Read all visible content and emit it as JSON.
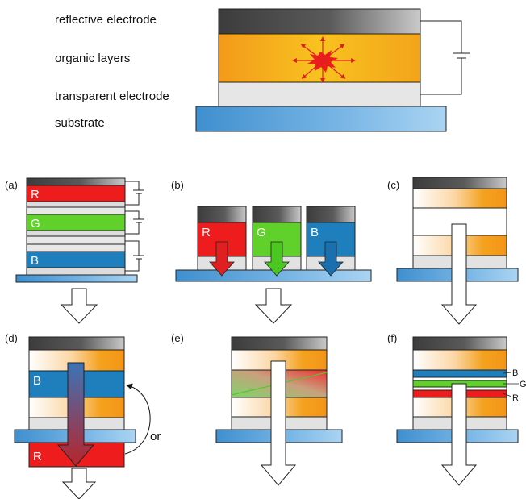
{
  "top_labels": {
    "reflective": "reflective electrode",
    "organic": "organic layers",
    "transparent": "transparent electrode",
    "substrate": "substrate"
  },
  "panels": {
    "a": "(a)",
    "b": "(b)",
    "c": "(c)",
    "d": "(d)",
    "e": "(e)",
    "f": "(f)"
  },
  "letters": {
    "r": "R",
    "g": "G",
    "b": "B"
  },
  "or_label": "or",
  "colors": {
    "red": "#ee1c1c",
    "green": "#5fd12a",
    "blue": "#1f7fbd",
    "orange": "#f4a21e",
    "electrode_dark": "#4a4a4a",
    "transparent": "#e2e2e2",
    "substrate": "#7ab7e6"
  }
}
